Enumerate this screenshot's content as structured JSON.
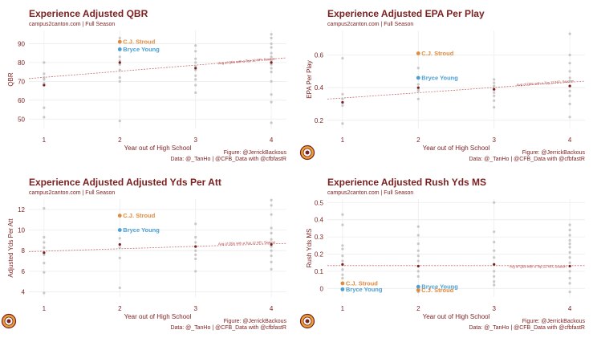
{
  "colors": {
    "title": "#7b1f1f",
    "stroud": "#e08a3c",
    "young": "#4a9fd4",
    "others": "#b8b8b8",
    "avg": "#7b1f1f",
    "trend": "#c87070",
    "grid": "#ececec"
  },
  "chart_data": [
    {
      "type": "scatter",
      "title": "Experience Adjusted QBR",
      "subtitle": "campus2canton.com | Full Season",
      "xlabel": "Year out of High School",
      "ylabel": "QBR",
      "x_ticks": [
        1,
        2,
        3,
        4
      ],
      "y_ticks": [
        50,
        60,
        70,
        80,
        90
      ],
      "xlim": [
        0.8,
        4.2
      ],
      "ylim": [
        45,
        97
      ],
      "points": [
        {
          "x": 1,
          "y": 80
        },
        {
          "x": 1,
          "y": 74
        },
        {
          "x": 1,
          "y": 72
        },
        {
          "x": 1,
          "y": 71
        },
        {
          "x": 1,
          "y": 69
        },
        {
          "x": 1,
          "y": 56
        },
        {
          "x": 1,
          "y": 51
        },
        {
          "x": 2,
          "y": 93
        },
        {
          "x": 2,
          "y": 87
        },
        {
          "x": 2,
          "y": 83
        },
        {
          "x": 2,
          "y": 81
        },
        {
          "x": 2,
          "y": 79
        },
        {
          "x": 2,
          "y": 76
        },
        {
          "x": 2,
          "y": 72
        },
        {
          "x": 2,
          "y": 70
        },
        {
          "x": 2,
          "y": 49
        },
        {
          "x": 3,
          "y": 89
        },
        {
          "x": 3,
          "y": 86
        },
        {
          "x": 3,
          "y": 82
        },
        {
          "x": 3,
          "y": 80
        },
        {
          "x": 3,
          "y": 78
        },
        {
          "x": 3,
          "y": 76
        },
        {
          "x": 3,
          "y": 73
        },
        {
          "x": 3,
          "y": 71
        },
        {
          "x": 3,
          "y": 68
        },
        {
          "x": 3,
          "y": 64
        },
        {
          "x": 4,
          "y": 95
        },
        {
          "x": 4,
          "y": 93
        },
        {
          "x": 4,
          "y": 90
        },
        {
          "x": 4,
          "y": 88
        },
        {
          "x": 4,
          "y": 85
        },
        {
          "x": 4,
          "y": 83
        },
        {
          "x": 4,
          "y": 81
        },
        {
          "x": 4,
          "y": 79
        },
        {
          "x": 4,
          "y": 77
        },
        {
          "x": 4,
          "y": 75
        },
        {
          "x": 4,
          "y": 70
        },
        {
          "x": 4,
          "y": 63
        },
        {
          "x": 4,
          "y": 59
        },
        {
          "x": 4,
          "y": 48
        }
      ],
      "averages": [
        {
          "x": 1,
          "y": 68
        },
        {
          "x": 2,
          "y": 80
        },
        {
          "x": 3,
          "y": 77
        },
        {
          "x": 4,
          "y": 80
        }
      ],
      "trend": [
        {
          "x": 0.8,
          "y": 71.5
        },
        {
          "x": 4.2,
          "y": 82.5
        }
      ],
      "ref_note": "Avg of QBs with a Top 12 NFL Season",
      "ref_note_at": {
        "x": 3.3,
        "y": 79
      },
      "highlights": [
        {
          "name": "C.J. Stroud",
          "x": 2,
          "y": 91,
          "color": "#e08a3c"
        },
        {
          "name": "Bryce Young",
          "x": 2,
          "y": 87,
          "color": "#4a9fd4"
        }
      ],
      "caption_lines": [
        "Figure: @JerrickBackous",
        "Data: @_TanHo | @CFB_Data with @cfbfastR"
      ],
      "logo": false
    },
    {
      "type": "scatter",
      "title": "Experience Adjusted EPA Per Play",
      "subtitle": "campus2canton.com | Full Season",
      "xlabel": "Year out of High School",
      "ylabel": "EPA Per Play",
      "x_ticks": [
        1,
        2,
        3,
        4
      ],
      "y_ticks": [
        0.2,
        0.4,
        0.6
      ],
      "xlim": [
        0.8,
        4.2
      ],
      "ylim": [
        0.15,
        0.75
      ],
      "points": [
        {
          "x": 1,
          "y": 0.58
        },
        {
          "x": 1,
          "y": 0.36
        },
        {
          "x": 1,
          "y": 0.33
        },
        {
          "x": 1,
          "y": 0.31
        },
        {
          "x": 1,
          "y": 0.29
        },
        {
          "x": 1,
          "y": 0.18
        },
        {
          "x": 2,
          "y": 0.61
        },
        {
          "x": 2,
          "y": 0.52
        },
        {
          "x": 2,
          "y": 0.46
        },
        {
          "x": 2,
          "y": 0.42
        },
        {
          "x": 2,
          "y": 0.39
        },
        {
          "x": 2,
          "y": 0.38
        },
        {
          "x": 2,
          "y": 0.33
        },
        {
          "x": 3,
          "y": 0.45
        },
        {
          "x": 3,
          "y": 0.43
        },
        {
          "x": 3,
          "y": 0.41
        },
        {
          "x": 3,
          "y": 0.39
        },
        {
          "x": 3,
          "y": 0.37
        },
        {
          "x": 3,
          "y": 0.35
        },
        {
          "x": 3,
          "y": 0.32
        },
        {
          "x": 3,
          "y": 0.28
        },
        {
          "x": 4,
          "y": 0.73
        },
        {
          "x": 4,
          "y": 0.6
        },
        {
          "x": 4,
          "y": 0.55
        },
        {
          "x": 4,
          "y": 0.5
        },
        {
          "x": 4,
          "y": 0.46
        },
        {
          "x": 4,
          "y": 0.44
        },
        {
          "x": 4,
          "y": 0.41
        },
        {
          "x": 4,
          "y": 0.38
        },
        {
          "x": 4,
          "y": 0.35
        },
        {
          "x": 4,
          "y": 0.3
        },
        {
          "x": 4,
          "y": 0.22
        }
      ],
      "averages": [
        {
          "x": 1,
          "y": 0.31
        },
        {
          "x": 2,
          "y": 0.4
        },
        {
          "x": 3,
          "y": 0.39
        },
        {
          "x": 4,
          "y": 0.41
        }
      ],
      "trend": [
        {
          "x": 0.8,
          "y": 0.33
        },
        {
          "x": 4.2,
          "y": 0.44
        }
      ],
      "ref_note": "Avg of QBs with a Top 12 NFL Season",
      "ref_note_at": {
        "x": 3.3,
        "y": 0.41
      },
      "highlights": [
        {
          "name": "C.J. Stroud",
          "x": 2,
          "y": 0.61,
          "color": "#e08a3c"
        },
        {
          "name": "Bryce Young",
          "x": 2,
          "y": 0.46,
          "color": "#4a9fd4"
        }
      ],
      "caption_lines": [
        "Figure: @JerrickBackous",
        "Data: @_TanHo | @CFB_Data with @cfbfastR"
      ],
      "logo": true
    },
    {
      "type": "scatter",
      "title": "Experience Adjusted Adjusted Yds Per Att",
      "subtitle": "campus2canton.com | Full Season",
      "xlabel": "Year out of High School",
      "ylabel": "Adjusted Yds Per Att",
      "x_ticks": [
        1,
        2,
        3,
        4
      ],
      "y_ticks": [
        4,
        6,
        8,
        10,
        12
      ],
      "xlim": [
        0.8,
        4.2
      ],
      "ylim": [
        3.5,
        13
      ],
      "points": [
        {
          "x": 1,
          "y": 12.1
        },
        {
          "x": 1,
          "y": 9.3
        },
        {
          "x": 1,
          "y": 8.8
        },
        {
          "x": 1,
          "y": 8.3
        },
        {
          "x": 1,
          "y": 7.6
        },
        {
          "x": 1,
          "y": 6.8
        },
        {
          "x": 1,
          "y": 5.9
        },
        {
          "x": 1,
          "y": 3.9
        },
        {
          "x": 2,
          "y": 11.4
        },
        {
          "x": 2,
          "y": 10.0
        },
        {
          "x": 2,
          "y": 9.2
        },
        {
          "x": 2,
          "y": 8.6
        },
        {
          "x": 2,
          "y": 8.3
        },
        {
          "x": 2,
          "y": 7.3
        },
        {
          "x": 2,
          "y": 4.4
        },
        {
          "x": 3,
          "y": 10.6
        },
        {
          "x": 3,
          "y": 9.3
        },
        {
          "x": 3,
          "y": 8.8
        },
        {
          "x": 3,
          "y": 8.4
        },
        {
          "x": 3,
          "y": 8.0
        },
        {
          "x": 3,
          "y": 7.6
        },
        {
          "x": 3,
          "y": 7.2
        },
        {
          "x": 3,
          "y": 6.0
        },
        {
          "x": 4,
          "y": 12.9
        },
        {
          "x": 4,
          "y": 12.4
        },
        {
          "x": 4,
          "y": 11.5
        },
        {
          "x": 4,
          "y": 10.2
        },
        {
          "x": 4,
          "y": 9.7
        },
        {
          "x": 4,
          "y": 9.1
        },
        {
          "x": 4,
          "y": 8.7
        },
        {
          "x": 4,
          "y": 8.4
        },
        {
          "x": 4,
          "y": 8.0
        },
        {
          "x": 4,
          "y": 7.5
        },
        {
          "x": 4,
          "y": 6.9
        },
        {
          "x": 4,
          "y": 6.2
        }
      ],
      "averages": [
        {
          "x": 1,
          "y": 7.8
        },
        {
          "x": 2,
          "y": 8.6
        },
        {
          "x": 3,
          "y": 8.4
        },
        {
          "x": 4,
          "y": 8.6
        }
      ],
      "trend": [
        {
          "x": 0.8,
          "y": 7.9
        },
        {
          "x": 4.2,
          "y": 8.7
        }
      ],
      "ref_note": "Avg of QBs with a Top 12 NFL Season",
      "ref_note_at": {
        "x": 3.3,
        "y": 8.55
      },
      "highlights": [
        {
          "name": "C.J. Stroud",
          "x": 2,
          "y": 11.4,
          "color": "#e08a3c"
        },
        {
          "name": "Bryce Young",
          "x": 2,
          "y": 10.0,
          "color": "#4a9fd4"
        }
      ],
      "caption_lines": [
        "Figure: @JerrickBackous",
        "Data: @_TanHo | @CFB_Data with @cfbfastR"
      ],
      "logo": true
    },
    {
      "type": "scatter",
      "title": "Experience Adjusted Rush Yds MS",
      "subtitle": "campus2canton.com | Full Season",
      "xlabel": "Year out of High School",
      "ylabel": "Rush Yds MS",
      "x_ticks": [
        1,
        2,
        3,
        4
      ],
      "y_ticks": [
        0.0,
        0.1,
        0.2,
        0.3,
        0.4,
        0.5
      ],
      "xlim": [
        0.8,
        4.2
      ],
      "ylim": [
        -0.05,
        0.52
      ],
      "points": [
        {
          "x": 1,
          "y": 0.43
        },
        {
          "x": 1,
          "y": 0.37
        },
        {
          "x": 1,
          "y": 0.25
        },
        {
          "x": 1,
          "y": 0.23
        },
        {
          "x": 1,
          "y": 0.19
        },
        {
          "x": 1,
          "y": 0.16
        },
        {
          "x": 1,
          "y": 0.11
        },
        {
          "x": 1,
          "y": 0.08
        },
        {
          "x": 1,
          "y": 0.06
        },
        {
          "x": 1,
          "y": 0.03
        },
        {
          "x": 2,
          "y": 0.36
        },
        {
          "x": 2,
          "y": 0.31
        },
        {
          "x": 2,
          "y": 0.26
        },
        {
          "x": 2,
          "y": 0.22
        },
        {
          "x": 2,
          "y": 0.19
        },
        {
          "x": 2,
          "y": 0.16
        },
        {
          "x": 2,
          "y": 0.1
        },
        {
          "x": 2,
          "y": 0.07
        },
        {
          "x": 2,
          "y": 0.01
        },
        {
          "x": 2,
          "y": -0.02
        },
        {
          "x": 3,
          "y": 0.5
        },
        {
          "x": 3,
          "y": 0.33
        },
        {
          "x": 3,
          "y": 0.27
        },
        {
          "x": 3,
          "y": 0.22
        },
        {
          "x": 3,
          "y": 0.18
        },
        {
          "x": 3,
          "y": 0.14
        },
        {
          "x": 3,
          "y": 0.1
        },
        {
          "x": 3,
          "y": 0.07
        },
        {
          "x": 3,
          "y": 0.04
        },
        {
          "x": 3,
          "y": 0.02
        },
        {
          "x": 4,
          "y": 0.37
        },
        {
          "x": 4,
          "y": 0.34
        },
        {
          "x": 4,
          "y": 0.31
        },
        {
          "x": 4,
          "y": 0.28
        },
        {
          "x": 4,
          "y": 0.26
        },
        {
          "x": 4,
          "y": 0.24
        },
        {
          "x": 4,
          "y": 0.21
        },
        {
          "x": 4,
          "y": 0.18
        },
        {
          "x": 4,
          "y": 0.15
        },
        {
          "x": 4,
          "y": 0.1
        },
        {
          "x": 4,
          "y": 0.06
        },
        {
          "x": 4,
          "y": 0.03
        },
        {
          "x": 4,
          "y": -0.02
        }
      ],
      "averages": [
        {
          "x": 1,
          "y": 0.14
        },
        {
          "x": 2,
          "y": 0.13
        },
        {
          "x": 3,
          "y": 0.14
        },
        {
          "x": 4,
          "y": 0.13
        }
      ],
      "trend": [
        {
          "x": 0.8,
          "y": 0.133
        },
        {
          "x": 4.2,
          "y": 0.133
        }
      ],
      "ref_note": "Avg of QBs with a Top 12 NFL Season",
      "ref_note_at": {
        "x": 3.2,
        "y": 0.12
      },
      "highlights": [
        {
          "name": "C.J. Stroud",
          "x": 1,
          "y": 0.03,
          "color": "#e08a3c"
        },
        {
          "name": "Bryce Young",
          "x": 1,
          "y": -0.005,
          "color": "#4a9fd4"
        },
        {
          "name": "Bryce Young",
          "x": 2,
          "y": 0.01,
          "color": "#4a9fd4"
        },
        {
          "name": "C.J. Stroud",
          "x": 2,
          "y": -0.01,
          "color": "#e08a3c"
        }
      ],
      "caption_lines": [
        "Figure: @JerrickBackous",
        "Data: @_TanHo | @CFB_Data with @cfbfastR"
      ],
      "logo": true
    }
  ]
}
